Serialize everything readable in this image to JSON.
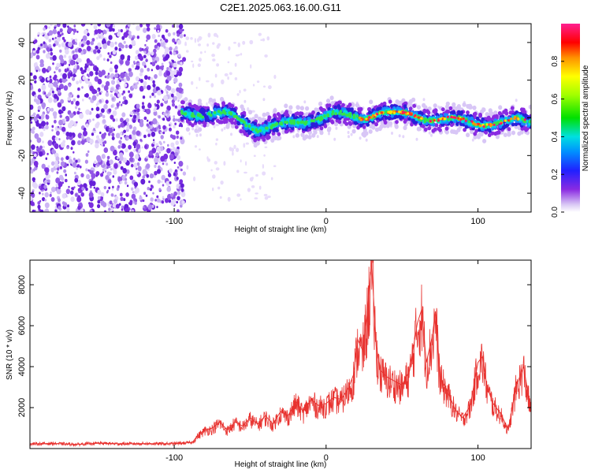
{
  "figure": {
    "title": "C2E1.2025.063.16.00.G11"
  },
  "chart_data": [
    {
      "type": "heatmap",
      "xlabel": "Height of straight line (km)",
      "ylabel": "Frequency (Hz)",
      "xlim": [
        -195,
        135
      ],
      "ylim": [
        -50,
        50
      ],
      "xticks": [
        -100,
        0,
        100
      ],
      "yticks": [
        -40,
        -20,
        0,
        20,
        40
      ],
      "colorbar": {
        "label": "Normalized spectral amplitude",
        "range": [
          0,
          1
        ],
        "ticks": [
          "0.0",
          "0.2",
          "0.4",
          "0.6",
          "0.8"
        ]
      },
      "noise_region": {
        "x_from": -195,
        "x_to": -93,
        "freq_range": [
          -50,
          50
        ]
      },
      "ridge": {
        "x": [
          -95,
          -80,
          -65,
          -55,
          -45,
          -35,
          -25,
          -15,
          -5,
          5,
          15,
          25,
          35,
          45,
          55,
          65,
          75,
          85,
          95,
          105,
          115,
          125,
          135
        ],
        "freq": [
          3,
          2,
          2,
          -2,
          -6,
          -5,
          -3,
          -2,
          0,
          2,
          1,
          0,
          3,
          2,
          2,
          0,
          -1,
          -1,
          -2,
          -3,
          -3,
          -1,
          -2
        ]
      },
      "grid": false
    },
    {
      "type": "line",
      "xlabel": "Height of straight line (km)",
      "ylabel": "SNR (10 * v/v)",
      "xlim": [
        -195,
        135
      ],
      "ylim": [
        0,
        9200
      ],
      "xticks": [
        -100,
        0,
        100
      ],
      "yticks": [
        2000,
        4000,
        6000,
        8000
      ],
      "series": [
        {
          "color": "#e8322f",
          "x": [
            -195,
            -180,
            -165,
            -150,
            -135,
            -120,
            -105,
            -95,
            -88,
            -85,
            -80,
            -75,
            -70,
            -65,
            -60,
            -55,
            -50,
            -45,
            -40,
            -35,
            -30,
            -25,
            -20,
            -15,
            -10,
            -5,
            0,
            5,
            10,
            15,
            18,
            21,
            24,
            27,
            30,
            33,
            36,
            40,
            45,
            50,
            55,
            60,
            63,
            66,
            70,
            72,
            75,
            80,
            85,
            90,
            95,
            100,
            103,
            106,
            110,
            115,
            120,
            125,
            130,
            135
          ],
          "y": [
            220,
            250,
            200,
            260,
            230,
            240,
            230,
            260,
            300,
            600,
            900,
            1000,
            1300,
            900,
            1300,
            1100,
            1500,
            1200,
            1600,
            1200,
            1800,
            1600,
            2300,
            1800,
            2400,
            2100,
            2200,
            2500,
            2400,
            3000,
            3600,
            5300,
            4800,
            6500,
            9100,
            5000,
            3800,
            3500,
            3300,
            3100,
            3800,
            6100,
            6800,
            4200,
            5500,
            6700,
            3500,
            2800,
            1900,
            1500,
            2100,
            4200,
            4500,
            3000,
            2200,
            1700,
            900,
            3000,
            4000,
            1800
          ]
        }
      ],
      "grid": false
    }
  ]
}
